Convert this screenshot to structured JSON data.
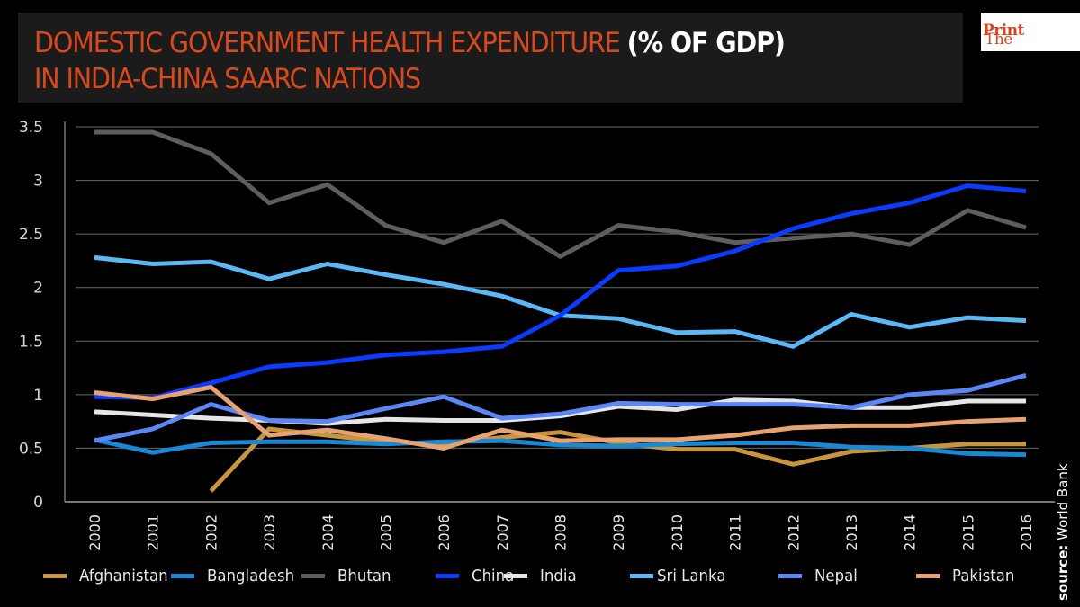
{
  "header": {
    "title_line1_prefix": "DOMESTIC GOVERNMENT HEALTH EXPENDITURE ",
    "title_line1_bold": "(% OF GDP)",
    "title_line2": "IN INDIA-CHINA SAARC NATIONS",
    "title_color": "#d9491e"
  },
  "logo": {
    "part1": "The",
    "part2": "Print"
  },
  "source": {
    "label": "source:",
    "value": " World Bank"
  },
  "chart_data": {
    "type": "line",
    "title": "DOMESTIC GOVERNMENT HEALTH EXPENDITURE (% OF GDP) IN INDIA-CHINA SAARC NATIONS",
    "xlabel": "",
    "ylabel": "",
    "ylim": [
      0,
      3.5
    ],
    "yticks": [
      0,
      0.5,
      1,
      1.5,
      2,
      2.5,
      3,
      3.5
    ],
    "ytick_labels": [
      "0",
      "0.5",
      "1",
      "1.5",
      "2",
      "2.5",
      "3",
      "3.5"
    ],
    "grid": true,
    "legend_position": "bottom",
    "x": [
      "2000",
      "2001",
      "2002",
      "2003",
      "2004",
      "2005",
      "2006",
      "2007",
      "2008",
      "2009",
      "2010",
      "2011",
      "2012",
      "2013",
      "2014",
      "2015",
      "2016"
    ],
    "series": [
      {
        "name": "Afghanistan",
        "color": "#c8953f",
        "values": [
          null,
          null,
          0.1,
          0.68,
          0.62,
          0.56,
          0.54,
          0.6,
          0.65,
          0.55,
          0.49,
          0.49,
          0.35,
          0.47,
          0.5,
          0.54,
          0.54
        ]
      },
      {
        "name": "Bangladesh",
        "color": "#1789d6",
        "values": [
          0.58,
          0.46,
          0.55,
          0.56,
          0.56,
          0.54,
          0.56,
          0.57,
          0.53,
          0.52,
          0.54,
          0.55,
          0.55,
          0.51,
          0.5,
          0.45,
          0.44
        ]
      },
      {
        "name": "Bhutan",
        "color": "#5e5e5e",
        "values": [
          3.45,
          3.45,
          3.25,
          2.79,
          2.96,
          2.58,
          2.42,
          2.62,
          2.29,
          2.58,
          2.52,
          2.42,
          2.46,
          2.5,
          2.4,
          2.72,
          2.56
        ]
      },
      {
        "name": "China",
        "color": "#0a3cff",
        "values": [
          0.98,
          0.97,
          1.11,
          1.26,
          1.3,
          1.37,
          1.4,
          1.45,
          1.74,
          2.16,
          2.2,
          2.34,
          2.55,
          2.69,
          2.79,
          2.95,
          2.9
        ]
      },
      {
        "name": "India",
        "color": "#e6e6e6",
        "values": [
          0.84,
          0.81,
          0.78,
          0.76,
          0.73,
          0.77,
          0.76,
          0.76,
          0.8,
          0.89,
          0.86,
          0.95,
          0.94,
          0.88,
          0.88,
          0.94,
          0.94
        ]
      },
      {
        "name": "Sri Lanka",
        "color": "#5bb8f5",
        "values": [
          2.28,
          2.22,
          2.24,
          2.08,
          2.22,
          2.12,
          2.03,
          1.92,
          1.74,
          1.71,
          1.58,
          1.59,
          1.45,
          1.75,
          1.63,
          1.72,
          1.69
        ]
      },
      {
        "name": "Nepal",
        "color": "#5b86f5",
        "values": [
          0.57,
          0.68,
          0.91,
          0.76,
          0.75,
          0.87,
          0.98,
          0.78,
          0.82,
          0.92,
          0.91,
          0.91,
          0.91,
          0.88,
          1.0,
          1.04,
          1.18
        ]
      },
      {
        "name": "Pakistan",
        "color": "#e8a272",
        "values": [
          1.02,
          0.96,
          1.07,
          0.62,
          0.67,
          0.59,
          0.5,
          0.67,
          0.57,
          0.58,
          0.58,
          0.62,
          0.69,
          0.71,
          0.71,
          0.75,
          0.77
        ]
      }
    ]
  }
}
